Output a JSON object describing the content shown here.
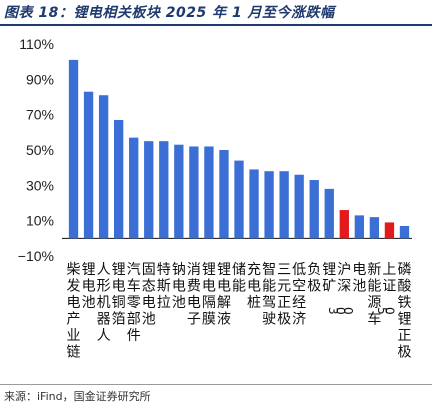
{
  "header": {
    "title": "图表 18：锂电相关板块 2025 年 1 月至今涨跌幅"
  },
  "footer": {
    "source": "来源：iFind，国金证券研究所"
  },
  "chart_data": {
    "type": "bar",
    "categories": [
      "柴发电产业链",
      "锂电池",
      "人形机器人",
      "锂电铜箔",
      "汽车零部件",
      "固态电池",
      "特斯拉",
      "钠电池",
      "消费电子",
      "锂电隔膜",
      "锂电解液",
      "储能",
      "充电桩",
      "智能驾驶",
      "三元正极",
      "低空经济",
      "负极",
      "锂矿",
      "沪深300",
      "电池",
      "新能源车",
      "上证50",
      "磷酸铁锂正极"
    ],
    "values": [
      101,
      83,
      81,
      67,
      57,
      55,
      55,
      53,
      52,
      52,
      50,
      44,
      39,
      38,
      38,
      36,
      33,
      28,
      16,
      13,
      12,
      9,
      7
    ],
    "colors": [
      "#3c6fd6",
      "#3c6fd6",
      "#3c6fd6",
      "#3c6fd6",
      "#3c6fd6",
      "#3c6fd6",
      "#3c6fd6",
      "#3c6fd6",
      "#3c6fd6",
      "#3c6fd6",
      "#3c6fd6",
      "#3c6fd6",
      "#3c6fd6",
      "#3c6fd6",
      "#3c6fd6",
      "#3c6fd6",
      "#3c6fd6",
      "#3c6fd6",
      "#e31a1c",
      "#3c6fd6",
      "#3c6fd6",
      "#e31a1c",
      "#3c6fd6"
    ],
    "yticks": [
      "110%",
      "90%",
      "70%",
      "50%",
      "30%",
      "10%",
      "−10%"
    ],
    "ytick_values": [
      110,
      90,
      70,
      50,
      30,
      10,
      -10
    ],
    "ylim": [
      -10,
      110
    ],
    "grid": false,
    "legend": "none"
  }
}
